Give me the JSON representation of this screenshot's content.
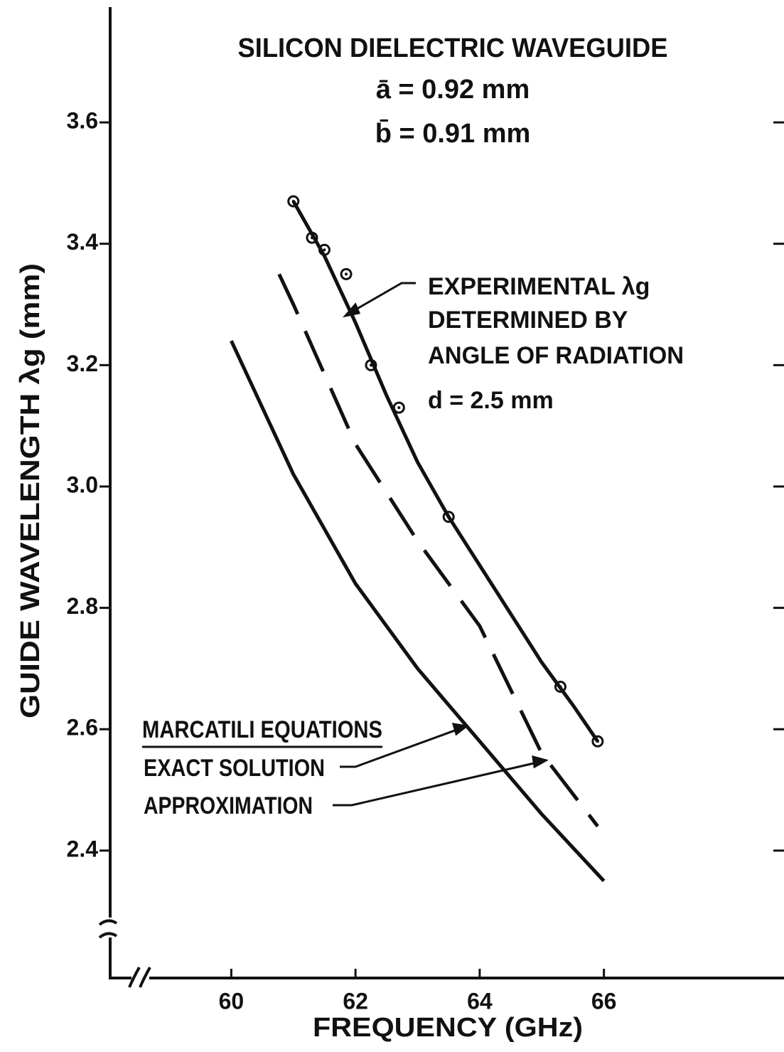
{
  "chart_data": {
    "type": "line",
    "title": "SILICON DIELECTRIC WAVEGUIDE",
    "subtitle": [
      "ā = 0.92 mm",
      "b̄ = 0.91 mm"
    ],
    "annotations": [
      "DETERMINED BY",
      "ANGLE OF RADIATION",
      "d = 2.5 mm"
    ],
    "legend_title": "MARCATILI EQUATIONS",
    "x_label": "FREQUENCY (GHz)",
    "y_label": "GUIDE WAVELENGTH λg (mm)",
    "xlim": [
      58.05,
      68.9
    ],
    "ylim": [
      2.19,
      3.79
    ],
    "xticks": [
      60,
      62,
      64,
      66
    ],
    "yticks": [
      2.4,
      2.6,
      2.8,
      {
        "value": 3,
        "label": "3.0"
      },
      3.2,
      3.4,
      3.6
    ],
    "series": [
      {
        "name": "EXPERIMENTAL λg",
        "style": "markers",
        "color": "#111",
        "x": [
          61.0,
          61.3,
          61.5,
          61.85,
          62.25,
          62.7,
          63.5,
          65.3,
          65.9
        ],
        "values": [
          3.47,
          3.41,
          3.39,
          3.35,
          3.2,
          3.13,
          2.95,
          2.67,
          2.58
        ]
      },
      {
        "style": "solid",
        "color": "#111",
        "x": [
          61.0,
          61.5,
          62,
          62.5,
          63,
          63.5,
          64,
          64.5,
          65,
          65.5,
          65.9
        ],
        "values": [
          3.47,
          3.38,
          3.27,
          3.15,
          3.04,
          2.95,
          2.87,
          2.79,
          2.71,
          2.64,
          2.58
        ]
      },
      {
        "name": "EXACT SOLUTION",
        "style": "solid",
        "color": "#111",
        "x": [
          60,
          61,
          62,
          63,
          64,
          65,
          66
        ],
        "values": [
          3.24,
          3.02,
          2.84,
          2.7,
          2.58,
          2.46,
          2.35
        ]
      },
      {
        "name": "APPROXIMATION",
        "style": "dashed",
        "color": "#111",
        "x": [
          60.77,
          61,
          62,
          63,
          64,
          65,
          65.9
        ],
        "values": [
          3.35,
          3.3,
          3.07,
          2.91,
          2.77,
          2.56,
          2.44
        ]
      }
    ]
  }
}
